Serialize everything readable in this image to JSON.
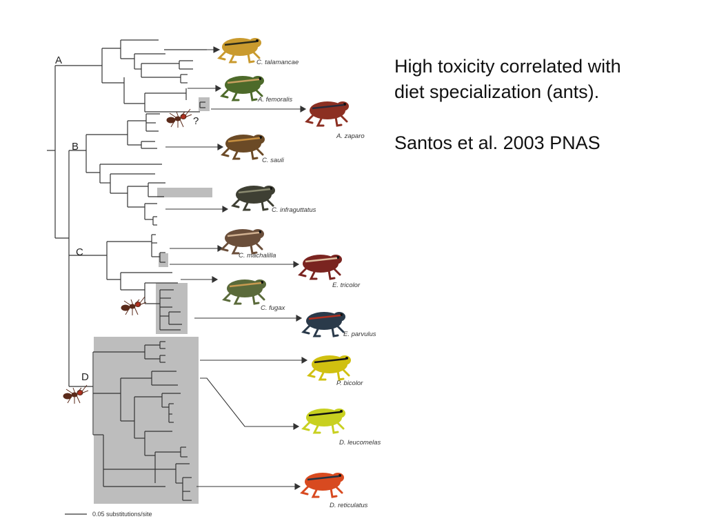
{
  "slide": {
    "text_line1": "High toxicity correlated with",
    "text_line2": "diet specialization (ants).",
    "citation": "Santos et al. 2003 PNAS"
  },
  "tree": {
    "clades": [
      "A",
      "B",
      "C",
      "D"
    ],
    "question_mark": "?",
    "scale_label": "0.05 substitutions/site",
    "species": [
      {
        "name": "C. talamancae",
        "color": "#c99a2e",
        "stripe": "#2a2a1a"
      },
      {
        "name": "A. femoralis",
        "color": "#4d6a2a",
        "stripe": "#c8a060"
      },
      {
        "name": "A. zaparo",
        "color": "#8c2f22",
        "stripe": "#2a2a3a"
      },
      {
        "name": "C. sauli",
        "color": "#6b4a26",
        "stripe": "#c89040"
      },
      {
        "name": "C. infraguttatus",
        "color": "#3e3f33",
        "stripe": "#8a8a70"
      },
      {
        "name": "C. machalilla",
        "color": "#6a4e3a",
        "stripe": "#d0b090"
      },
      {
        "name": "E. tricolor",
        "color": "#7a2420",
        "stripe": "#e0c0a0"
      },
      {
        "name": "C. fugax",
        "color": "#5a6a3a",
        "stripe": "#c89a50"
      },
      {
        "name": "E. parvulus",
        "color": "#2a3a4a",
        "stripe": "#b03020"
      },
      {
        "name": "P. bicolor",
        "color": "#d0c010",
        "stripe": "#1a1a1a"
      },
      {
        "name": "D. leucomelas",
        "color": "#c8d020",
        "stripe": "#111111"
      },
      {
        "name": "D. reticulatus",
        "color": "#d84a20",
        "stripe": "#223344"
      }
    ],
    "colors": {
      "branch": "#333333",
      "highlight": "#bdbdbd",
      "ant": "#5a2a1a"
    }
  }
}
